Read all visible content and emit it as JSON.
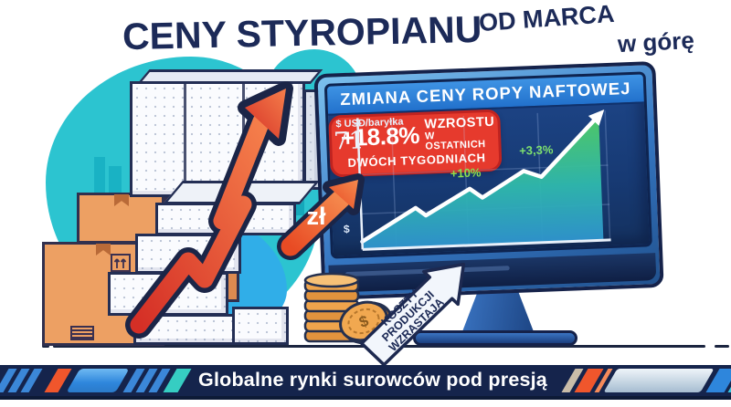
{
  "title": {
    "main": "CENY STYROPIANU",
    "sub_line1": "OD MARCA",
    "sub_line2": "w górę"
  },
  "monitor": {
    "header": "ZMIANA CENY ROPY NAFTOWEJ",
    "axis_unit": "$ USD/baryłka",
    "axis_start_value": "71",
    "axis_dollar_symbol": "$"
  },
  "badge": {
    "percent": "+18.8%",
    "word": "WZROSTU",
    "line2": "W OSTATNICH",
    "line3": "DWÓCH TYGODNIACH"
  },
  "chart_data": {
    "type": "line",
    "title": "ZMIANA CENY ROPY NAFTOWEJ",
    "ylabel": "$ USD/baryłka",
    "y_axis_start_label": "71",
    "trend": "rising zigzag ending in steep climb with arrowhead",
    "line_points_pct": [
      [
        0,
        6
      ],
      [
        11,
        18
      ],
      [
        22,
        30
      ],
      [
        26,
        24
      ],
      [
        44,
        43
      ],
      [
        49,
        36
      ],
      [
        66,
        55
      ],
      [
        73,
        50
      ],
      [
        97,
        95
      ]
    ],
    "annotations": [
      {
        "label": "+18.8%",
        "detail": "WZROSTU W OSTATNICH DWÓCH TYGODNIACH",
        "type": "callout-badge",
        "color": "#e63a2d"
      },
      {
        "label": "+10%",
        "anchor_pct": [
          44,
          43
        ],
        "color": "#8ce04e"
      },
      {
        "label": "+3,3%",
        "anchor_pct": [
          66,
          55
        ],
        "color": "#7ee06e"
      }
    ],
    "line_color": "#ffffff",
    "area_fill": [
      "#52cf63",
      "#2fb9ad",
      "#2f95cf"
    ],
    "grid": true,
    "legend": false
  },
  "zl_arrow": {
    "label": "zł"
  },
  "cost_arrow": {
    "line1": "KOSZTY",
    "line2": "PRODUKCJI",
    "line3": "WZRASTAJĄ"
  },
  "coin": {
    "symbol": "$"
  },
  "banner": {
    "text": "Globalne rynki surowców pod presją"
  },
  "colors": {
    "navy_text": "#1c2a58",
    "banner_bg": "#15244c",
    "badge_red": "#e63a2d",
    "big_arrow_red": "#e23327",
    "zl_arrow_orange": "#f05a30",
    "teal_blob": "#2cc4d0",
    "blue_blob": "#30aee8",
    "screen_bg": "#1a3d7c",
    "header_blue": "#2e7fd6"
  }
}
